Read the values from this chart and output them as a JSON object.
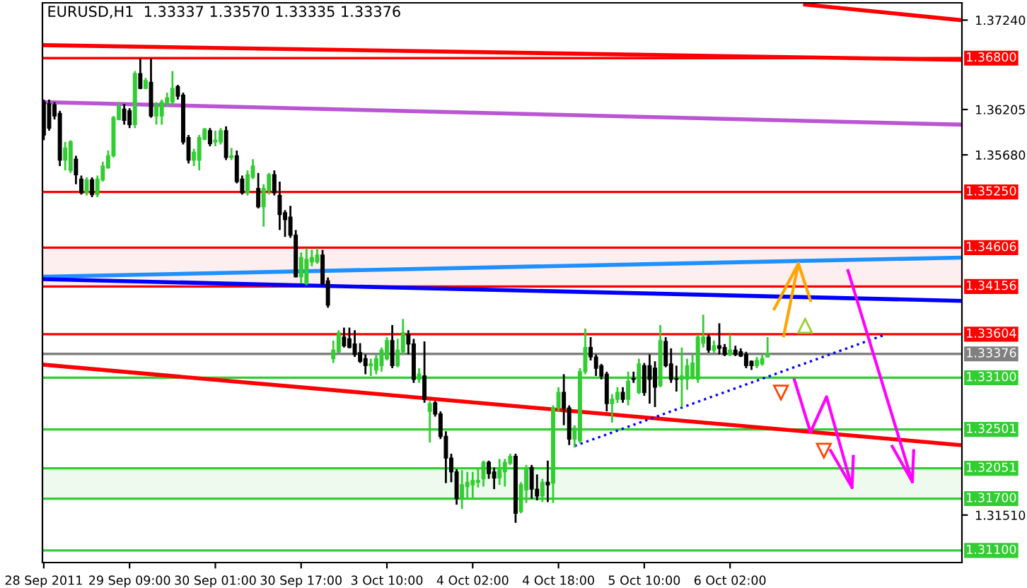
{
  "chart_data": {
    "type": "candlestick",
    "title": "EURUSD,H1  1.33337 1.33570 1.33335 1.33376",
    "categories": [
      "28 Sep 2011",
      null,
      null,
      null,
      null,
      null,
      null,
      null,
      null,
      null,
      null,
      null,
      null,
      null,
      null,
      null,
      "29 Sep 09:00",
      null,
      null,
      null,
      null,
      null,
      null,
      null,
      null,
      null,
      null,
      null,
      null,
      null,
      null,
      null,
      "30 Sep 01:00",
      null,
      null,
      null,
      null,
      null,
      null,
      null,
      null,
      null,
      null,
      null,
      null,
      null,
      null,
      null,
      "30 Sep 17:00",
      null,
      null,
      null,
      null,
      null,
      null,
      null,
      null,
      null,
      null,
      null,
      null,
      null,
      null,
      null,
      "3 Oct 10:00",
      null,
      null,
      null,
      null,
      null,
      null,
      null,
      null,
      null,
      null,
      null,
      null,
      null,
      null,
      null,
      "4 Oct 02:00",
      null,
      null,
      null,
      null,
      null,
      null,
      null,
      null,
      null,
      null,
      null,
      null,
      null,
      null,
      null,
      "4 Oct 18:00",
      null,
      null,
      null,
      null,
      null,
      null,
      null,
      null,
      null,
      null,
      null,
      null,
      null,
      null,
      null,
      "5 Oct 10:00",
      null,
      null,
      null,
      null,
      null,
      null,
      null,
      null,
      null,
      null,
      null,
      null,
      null,
      null,
      null,
      "6 Oct 02:00",
      null,
      null,
      null,
      null,
      null,
      null,
      null,
      null,
      null,
      null,
      null,
      null,
      null,
      null,
      null,
      null,
      null,
      null,
      null,
      null,
      null,
      null,
      null,
      null,
      null,
      null,
      null,
      null,
      null,
      null,
      null,
      null,
      null,
      null,
      null,
      null,
      null,
      null,
      null,
      null,
      null,
      null,
      null
    ],
    "ohlc": [
      [
        1.3629,
        1.3632,
        1.3585,
        1.3591
      ],
      [
        1.3627,
        1.3632,
        1.3596,
        1.3599
      ],
      [
        1.3626,
        1.3629,
        1.3609,
        1.3613
      ],
      [
        1.3616,
        1.3619,
        1.3555,
        1.3562
      ],
      [
        1.3562,
        1.3583,
        1.355,
        1.3576
      ],
      [
        1.355,
        1.3585,
        1.3547,
        1.3583
      ],
      [
        1.3563,
        1.3567,
        1.3534,
        1.3545
      ],
      [
        1.354,
        1.3544,
        1.3522,
        1.3524
      ],
      [
        1.3524,
        1.3542,
        1.3521,
        1.3539
      ],
      [
        1.3539,
        1.3542,
        1.3519,
        1.3522
      ],
      [
        1.3522,
        1.3544,
        1.3519,
        1.354
      ],
      [
        1.3539,
        1.356,
        1.3537,
        1.3555
      ],
      [
        1.3553,
        1.3573,
        1.3552,
        1.3567
      ],
      [
        1.3567,
        1.3613,
        1.3565,
        1.3611
      ],
      [
        1.3609,
        1.3629,
        1.3608,
        1.3624
      ],
      [
        1.3621,
        1.3627,
        1.3603,
        1.3608
      ],
      [
        1.3619,
        1.3622,
        1.3599,
        1.3603
      ],
      [
        1.3603,
        1.3665,
        1.3599,
        1.3662
      ],
      [
        1.3662,
        1.368,
        1.3644,
        1.3645
      ],
      [
        1.3645,
        1.3657,
        1.3644,
        1.3654
      ],
      [
        1.3652,
        1.368,
        1.3611,
        1.3613
      ],
      [
        1.3613,
        1.3629,
        1.3603,
        1.3626
      ],
      [
        1.3613,
        1.3632,
        1.3603,
        1.3629
      ],
      [
        1.3627,
        1.364,
        1.3624,
        1.3634
      ],
      [
        1.3629,
        1.3665,
        1.3626,
        1.3645
      ],
      [
        1.3647,
        1.3649,
        1.3632,
        1.3636
      ],
      [
        1.3637,
        1.364,
        1.358,
        1.3583
      ],
      [
        1.3588,
        1.3591,
        1.3558,
        1.3562
      ],
      [
        1.3562,
        1.3575,
        1.3555,
        1.3571
      ],
      [
        1.3562,
        1.3591,
        1.355,
        1.3588
      ],
      [
        1.3586,
        1.3599,
        1.3585,
        1.3598
      ],
      [
        1.3596,
        1.3599,
        1.3578,
        1.3581
      ],
      [
        1.3583,
        1.3596,
        1.3578,
        1.3585
      ],
      [
        1.3583,
        1.3599,
        1.358,
        1.3596
      ],
      [
        1.3596,
        1.3601,
        1.3562,
        1.3565
      ],
      [
        1.3565,
        1.3576,
        1.3562,
        1.3567
      ],
      [
        1.3567,
        1.3573,
        1.3535,
        1.3537
      ],
      [
        1.354,
        1.3544,
        1.3522,
        1.3524
      ],
      [
        1.3524,
        1.355,
        1.3521,
        1.3545
      ],
      [
        1.3542,
        1.3563,
        1.354,
        1.3555
      ],
      [
        1.3529,
        1.3547,
        1.3506,
        1.3508
      ],
      [
        1.3508,
        1.3534,
        1.3485,
        1.3529
      ],
      [
        1.3527,
        1.3547,
        1.3522,
        1.3545
      ],
      [
        1.3545,
        1.355,
        1.3521,
        1.3524
      ],
      [
        1.3521,
        1.3537,
        1.3481,
        1.3499
      ],
      [
        1.3501,
        1.3504,
        1.3473,
        1.3493
      ],
      [
        1.3496,
        1.3509,
        1.3472,
        1.3475
      ],
      [
        1.3475,
        1.3481,
        1.3426,
        1.3427
      ],
      [
        1.3427,
        1.3455,
        1.3419,
        1.3449
      ],
      [
        1.3419,
        1.346,
        1.3417,
        1.3447
      ],
      [
        1.3444,
        1.3458,
        1.3439,
        1.3449
      ],
      [
        1.3444,
        1.346,
        1.3442,
        1.3452
      ],
      [
        1.3452,
        1.3458,
        1.3417,
        1.3419
      ],
      [
        1.3422,
        1.3426,
        1.3391,
        1.3394
      ],
      [
        1.3332,
        1.3353,
        1.3327,
        1.3342
      ],
      [
        1.334,
        1.3365,
        1.3339,
        1.3362
      ],
      [
        1.3357,
        1.3368,
        1.3345,
        1.3347
      ],
      [
        1.3355,
        1.3368,
        1.3344,
        1.3345
      ],
      [
        1.3349,
        1.3365,
        1.3334,
        1.3337
      ],
      [
        1.3339,
        1.335,
        1.3327,
        1.3329
      ],
      [
        1.3332,
        1.3337,
        1.3314,
        1.3324
      ],
      [
        1.3324,
        1.3332,
        1.3312,
        1.3326
      ],
      [
        1.3319,
        1.3337,
        1.3314,
        1.3332
      ],
      [
        1.3324,
        1.3345,
        1.3317,
        1.3342
      ],
      [
        1.3332,
        1.3357,
        1.333,
        1.3353
      ],
      [
        1.3353,
        1.3371,
        1.3321,
        1.3324
      ],
      [
        1.3324,
        1.3355,
        1.3322,
        1.3342
      ],
      [
        1.334,
        1.3378,
        1.3337,
        1.3362
      ],
      [
        1.336,
        1.3365,
        1.3337,
        1.3349
      ],
      [
        1.3349,
        1.3355,
        1.3304,
        1.3308
      ],
      [
        1.3308,
        1.3321,
        1.3304,
        1.3314
      ],
      [
        1.3312,
        1.3352,
        1.3281,
        1.3285
      ],
      [
        1.3271,
        1.3283,
        1.3235,
        1.328
      ],
      [
        1.3281,
        1.3283,
        1.3265,
        1.3268
      ],
      [
        1.3268,
        1.3271,
        1.3239,
        1.3242
      ],
      [
        1.3242,
        1.3248,
        1.3188,
        1.3217
      ],
      [
        1.3217,
        1.3222,
        1.3189,
        1.3201
      ],
      [
        1.3201,
        1.3204,
        1.3163,
        1.317
      ],
      [
        1.317,
        1.3203,
        1.3158,
        1.3186
      ],
      [
        1.3184,
        1.3201,
        1.317,
        1.3189
      ],
      [
        1.3186,
        1.3201,
        1.317,
        1.3191
      ],
      [
        1.3189,
        1.3206,
        1.3183,
        1.3191
      ],
      [
        1.3193,
        1.3214,
        1.3184,
        1.3212
      ],
      [
        1.3212,
        1.3214,
        1.3193,
        1.3199
      ],
      [
        1.3201,
        1.3206,
        1.3181,
        1.3194
      ],
      [
        1.3194,
        1.3216,
        1.3186,
        1.3203
      ],
      [
        1.3201,
        1.3216,
        1.3184,
        1.3212
      ],
      [
        1.3211,
        1.3222,
        1.3209,
        1.3219
      ],
      [
        1.3219,
        1.3222,
        1.3142,
        1.3153
      ],
      [
        1.3155,
        1.3189,
        1.3153,
        1.3186
      ],
      [
        1.318,
        1.3209,
        1.3165,
        1.3206
      ],
      [
        1.3206,
        1.3209,
        1.317,
        1.3181
      ],
      [
        1.3181,
        1.3198,
        1.3168,
        1.3173
      ],
      [
        1.3173,
        1.3193,
        1.3166,
        1.3189
      ],
      [
        1.3189,
        1.3214,
        1.3166,
        1.3186
      ],
      [
        1.3188,
        1.3278,
        1.3165,
        1.3275
      ],
      [
        1.3275,
        1.3299,
        1.3271,
        1.3293
      ],
      [
        1.3293,
        1.3314,
        1.3255,
        1.3275
      ],
      [
        1.3275,
        1.3278,
        1.3232,
        1.3239
      ],
      [
        1.3239,
        1.3255,
        1.3229,
        1.3252
      ],
      [
        1.3237,
        1.3321,
        1.3234,
        1.3317
      ],
      [
        1.3317,
        1.3367,
        1.3314,
        1.3345
      ],
      [
        1.3345,
        1.3357,
        1.333,
        1.3334
      ],
      [
        1.3334,
        1.3337,
        1.3312,
        1.3321
      ],
      [
        1.3324,
        1.3326,
        1.3308,
        1.3312
      ],
      [
        1.3314,
        1.3317,
        1.3271,
        1.328
      ],
      [
        1.328,
        1.3291,
        1.3258,
        1.3285
      ],
      [
        1.3285,
        1.3299,
        1.3281,
        1.3293
      ],
      [
        1.3293,
        1.3299,
        1.3281,
        1.3285
      ],
      [
        1.3285,
        1.3317,
        1.3278,
        1.3306
      ],
      [
        1.3309,
        1.3317,
        1.3304,
        1.3308
      ],
      [
        1.3293,
        1.3332,
        1.3291,
        1.3326
      ],
      [
        1.3324,
        1.3327,
        1.3289,
        1.3293
      ],
      [
        1.3324,
        1.3337,
        1.328,
        1.3308
      ],
      [
        1.3321,
        1.3329,
        1.3276,
        1.3299
      ],
      [
        1.3301,
        1.3371,
        1.3299,
        1.3353
      ],
      [
        1.3352,
        1.3357,
        1.3322,
        1.3324
      ],
      [
        1.3326,
        1.3344,
        1.3304,
        1.3308
      ],
      [
        1.3309,
        1.3324,
        1.3294,
        1.3308
      ],
      [
        1.3308,
        1.3345,
        1.3276,
        1.3312
      ],
      [
        1.3308,
        1.3332,
        1.3296,
        1.3324
      ],
      [
        1.3309,
        1.3337,
        1.3308,
        1.3327
      ],
      [
        1.3308,
        1.336,
        1.3304,
        1.3357
      ],
      [
        1.335,
        1.3383,
        1.3345,
        1.3357
      ],
      [
        1.3357,
        1.336,
        1.3339,
        1.3342
      ],
      [
        1.3342,
        1.3353,
        1.3339,
        1.3347
      ],
      [
        1.3347,
        1.3373,
        1.3337,
        1.3344
      ],
      [
        1.3345,
        1.3349,
        1.3335,
        1.3337
      ],
      [
        1.3337,
        1.336,
        1.3335,
        1.3342
      ],
      [
        1.3342,
        1.3347,
        1.3335,
        1.3337
      ],
      [
        1.334,
        1.3344,
        1.3334,
        1.3335
      ],
      [
        1.3337,
        1.334,
        1.3321,
        1.3324
      ],
      [
        1.3329,
        1.333,
        1.3319,
        1.3324
      ],
      [
        1.3324,
        1.3334,
        1.3321,
        1.333
      ],
      [
        1.3326,
        1.3337,
        1.3324,
        1.3332
      ],
      [
        1.3334,
        1.3357,
        1.3334,
        1.3338
      ],
      null,
      null,
      null,
      null,
      null,
      null,
      null,
      null,
      null,
      null,
      null,
      null,
      null,
      null,
      null,
      null,
      null,
      null,
      null,
      null,
      null,
      null,
      null,
      null,
      null,
      null,
      null,
      null,
      null,
      null,
      null,
      null,
      null,
      null,
      null,
      null
    ],
    "series": [
      {
        "type": "line",
        "values": [
          null,
          null,
          null,
          null,
          null,
          null,
          null,
          null,
          null,
          null,
          null,
          null,
          null,
          null,
          null,
          null,
          null,
          null,
          null,
          null,
          null,
          null,
          null,
          null,
          null,
          null,
          null,
          null,
          null,
          null,
          null,
          null,
          null,
          null,
          null,
          null,
          null,
          null,
          null,
          null,
          null,
          null,
          null,
          null,
          null,
          null,
          null,
          null,
          null,
          null,
          null,
          null,
          null,
          null,
          null,
          null,
          null,
          null,
          null,
          null,
          null,
          null,
          null,
          null,
          null,
          null,
          null,
          null,
          null,
          null,
          null,
          null,
          null,
          null,
          null,
          null,
          null,
          null,
          null,
          null,
          null,
          null,
          null,
          null,
          null,
          null,
          null,
          null,
          null,
          null,
          null,
          null,
          null,
          null,
          null,
          null,
          null,
          null,
          null,
          null,
          null,
          null,
          null,
          null,
          null,
          null,
          null,
          null,
          null,
          null,
          null,
          null,
          null,
          null,
          null,
          null,
          null,
          null,
          null,
          null,
          null,
          null,
          null,
          null,
          null,
          null,
          null,
          null,
          null,
          null,
          null,
          null,
          null,
          null,
          null,
          null,
          null,
          null,
          null,
          null,
          null,
          null,
          1.3742,
          null,
          null,
          null,
          null,
          null,
          null,
          null,
          null,
          null,
          null,
          null,
          null,
          null,
          null,
          null,
          null,
          null,
          null,
          null,
          null,
          null,
          null,
          null,
          null,
          null,
          null,
          null,
          null,
          1.3724
        ],
        "color": "#ff0000",
        "line_style": "solid"
      },
      {
        "type": "line",
        "values": [
          1.3695,
          null,
          null,
          null,
          null,
          null,
          null,
          null,
          null,
          null,
          null,
          null,
          null,
          null,
          null,
          null,
          null,
          null,
          null,
          null,
          null,
          null,
          null,
          null,
          null,
          null,
          null,
          null,
          null,
          null,
          null,
          null,
          null,
          null,
          null,
          null,
          null,
          null,
          null,
          null,
          null,
          null,
          null,
          null,
          null,
          null,
          null,
          null,
          null,
          null,
          null,
          null,
          null,
          null,
          null,
          null,
          null,
          null,
          null,
          null,
          null,
          null,
          null,
          null,
          null,
          null,
          null,
          null,
          null,
          null,
          null,
          null,
          null,
          null,
          null,
          null,
          null,
          null,
          null,
          null,
          null,
          null,
          null,
          null,
          null,
          null,
          null,
          null,
          null,
          null,
          null,
          null,
          null,
          null,
          null,
          null,
          null,
          null,
          null,
          null,
          null,
          null,
          null,
          null,
          null,
          null,
          null,
          null,
          null,
          null,
          null,
          null,
          null,
          null,
          null,
          null,
          null,
          null,
          null,
          null,
          null,
          null,
          null,
          null,
          null,
          null,
          null,
          null,
          null,
          null,
          null,
          null,
          null,
          null,
          null,
          null,
          null,
          null,
          null,
          null,
          null,
          null,
          null,
          null,
          null,
          null,
          null,
          null,
          null,
          null,
          null,
          null,
          null,
          null,
          null,
          null,
          null,
          null,
          null,
          null,
          null,
          null,
          null,
          null,
          null,
          null,
          null,
          null,
          null,
          null,
          null,
          1.3678
        ],
        "color": "#ff0000",
        "line_style": "solid"
      },
      {
        "type": "line",
        "values": [
          1.3629,
          null,
          null,
          null,
          null,
          null,
          null,
          null,
          null,
          null,
          null,
          null,
          null,
          null,
          null,
          null,
          null,
          null,
          null,
          null,
          null,
          null,
          null,
          null,
          null,
          null,
          null,
          null,
          null,
          null,
          null,
          null,
          null,
          null,
          null,
          null,
          null,
          null,
          null,
          null,
          null,
          null,
          null,
          null,
          null,
          null,
          null,
          null,
          null,
          null,
          null,
          null,
          null,
          null,
          null,
          null,
          null,
          null,
          null,
          null,
          null,
          null,
          null,
          null,
          null,
          null,
          null,
          null,
          null,
          null,
          null,
          null,
          null,
          null,
          null,
          null,
          null,
          null,
          null,
          null,
          null,
          null,
          null,
          null,
          null,
          null,
          null,
          null,
          null,
          null,
          null,
          null,
          null,
          null,
          null,
          null,
          null,
          null,
          null,
          null,
          null,
          null,
          null,
          null,
          null,
          null,
          null,
          null,
          null,
          null,
          null,
          null,
          null,
          null,
          null,
          null,
          null,
          null,
          null,
          null,
          null,
          null,
          null,
          null,
          null,
          null,
          null,
          null,
          null,
          null,
          null,
          null,
          null,
          null,
          null,
          null,
          null,
          null,
          null,
          null,
          null,
          null,
          null,
          null,
          null,
          null,
          null,
          null,
          null,
          null,
          null,
          null,
          null,
          null,
          null,
          null,
          null,
          null,
          null,
          null,
          null,
          null,
          null,
          null,
          null,
          null,
          null,
          null,
          null,
          null,
          null,
          1.3603
        ],
        "color": "#ba55d3",
        "line_style": "solid"
      },
      {
        "type": "line",
        "values": [
          1.3427,
          null,
          null,
          null,
          null,
          null,
          null,
          null,
          null,
          null,
          null,
          null,
          null,
          null,
          null,
          null,
          null,
          null,
          null,
          null,
          null,
          null,
          null,
          null,
          null,
          null,
          null,
          null,
          null,
          null,
          null,
          null,
          null,
          null,
          null,
          null,
          null,
          null,
          null,
          null,
          null,
          null,
          null,
          null,
          null,
          null,
          null,
          null,
          null,
          null,
          null,
          null,
          null,
          null,
          null,
          null,
          null,
          null,
          null,
          null,
          null,
          null,
          null,
          null,
          null,
          null,
          null,
          null,
          null,
          null,
          null,
          null,
          null,
          null,
          null,
          null,
          null,
          null,
          null,
          null,
          null,
          null,
          null,
          null,
          null,
          null,
          null,
          null,
          null,
          null,
          null,
          null,
          null,
          null,
          null,
          null,
          null,
          null,
          null,
          null,
          null,
          null,
          null,
          null,
          null,
          null,
          null,
          null,
          null,
          null,
          null,
          null,
          null,
          null,
          null,
          null,
          null,
          null,
          null,
          null,
          null,
          null,
          null,
          null,
          null,
          null,
          null,
          null,
          null,
          null,
          null,
          null,
          null,
          null,
          null,
          null,
          null,
          null,
          null,
          null,
          null,
          null,
          null,
          null,
          null,
          null,
          null,
          null,
          null,
          null,
          null,
          null,
          null,
          null,
          null,
          null,
          null,
          null,
          null,
          null,
          null,
          null,
          null,
          null,
          null,
          null,
          null,
          null,
          null,
          null,
          null,
          1.3449
        ],
        "color": "#1e90ff",
        "line_style": "solid"
      },
      {
        "type": "line",
        "values": [
          1.3424,
          null,
          null,
          null,
          null,
          null,
          null,
          null,
          null,
          null,
          null,
          null,
          null,
          null,
          null,
          null,
          null,
          null,
          null,
          null,
          null,
          null,
          null,
          null,
          null,
          null,
          null,
          null,
          null,
          null,
          null,
          null,
          null,
          null,
          null,
          null,
          null,
          null,
          null,
          null,
          null,
          null,
          null,
          null,
          null,
          null,
          null,
          null,
          null,
          null,
          null,
          null,
          null,
          null,
          null,
          null,
          null,
          null,
          null,
          null,
          null,
          null,
          null,
          null,
          null,
          null,
          null,
          null,
          null,
          null,
          null,
          null,
          null,
          null,
          null,
          null,
          null,
          null,
          null,
          null,
          null,
          null,
          null,
          null,
          null,
          null,
          null,
          null,
          null,
          null,
          null,
          null,
          null,
          null,
          null,
          null,
          null,
          null,
          null,
          null,
          null,
          null,
          null,
          null,
          null,
          null,
          null,
          null,
          null,
          null,
          null,
          null,
          null,
          null,
          null,
          null,
          null,
          null,
          null,
          null,
          null,
          null,
          null,
          null,
          null,
          null,
          null,
          null,
          null,
          null,
          null,
          null,
          null,
          null,
          null,
          null,
          null,
          null,
          null,
          null,
          null,
          null,
          null,
          null,
          null,
          null,
          null,
          null,
          null,
          null,
          null,
          null,
          null,
          null,
          null,
          null,
          null,
          null,
          null,
          null,
          null,
          null,
          null,
          null,
          null,
          null,
          null,
          null,
          null,
          null,
          null,
          1.3399
        ],
        "color": "#0000ff",
        "line_style": "solid"
      },
      {
        "type": "line",
        "values": [
          1.3325,
          null,
          null,
          null,
          null,
          null,
          null,
          null,
          null,
          null,
          null,
          null,
          null,
          null,
          null,
          null,
          null,
          null,
          null,
          null,
          null,
          null,
          null,
          null,
          null,
          null,
          null,
          null,
          null,
          null,
          null,
          null,
          null,
          null,
          null,
          null,
          null,
          null,
          null,
          null,
          null,
          null,
          null,
          null,
          null,
          null,
          null,
          null,
          null,
          null,
          null,
          null,
          null,
          null,
          null,
          null,
          null,
          null,
          null,
          null,
          null,
          null,
          null,
          null,
          null,
          null,
          null,
          null,
          null,
          null,
          null,
          null,
          null,
          null,
          null,
          null,
          null,
          null,
          null,
          null,
          null,
          null,
          null,
          null,
          null,
          null,
          null,
          null,
          null,
          null,
          null,
          null,
          null,
          null,
          null,
          null,
          null,
          null,
          null,
          null,
          null,
          null,
          null,
          null,
          null,
          null,
          null,
          null,
          null,
          null,
          null,
          null,
          null,
          null,
          null,
          null,
          null,
          null,
          null,
          null,
          null,
          null,
          null,
          null,
          null,
          null,
          null,
          null,
          null,
          null,
          null,
          null,
          null,
          null,
          null,
          null,
          null,
          null,
          null,
          null,
          null,
          null,
          null,
          null,
          null,
          null,
          null,
          null,
          null,
          null,
          null,
          null,
          null,
          null,
          null,
          null,
          null,
          null,
          null,
          null,
          null,
          null,
          null,
          null,
          null,
          null,
          null,
          null,
          null,
          null,
          null,
          1.3232
        ],
        "color": "#ff0000",
        "line_style": "solid"
      },
      {
        "type": "line",
        "values": [
          null,
          null,
          null,
          null,
          null,
          null,
          null,
          null,
          null,
          null,
          null,
          null,
          null,
          null,
          null,
          null,
          null,
          null,
          null,
          null,
          null,
          null,
          null,
          null,
          null,
          null,
          null,
          null,
          null,
          null,
          null,
          null,
          null,
          null,
          null,
          null,
          null,
          null,
          null,
          null,
          null,
          null,
          null,
          null,
          null,
          null,
          null,
          null,
          null,
          null,
          null,
          null,
          null,
          null,
          null,
          null,
          null,
          null,
          null,
          null,
          null,
          null,
          null,
          null,
          null,
          null,
          null,
          null,
          null,
          null,
          null,
          null,
          null,
          null,
          null,
          null,
          null,
          null,
          null,
          null,
          null,
          null,
          null,
          null,
          null,
          null,
          null,
          null,
          null,
          null,
          null,
          null,
          null,
          null,
          null,
          null,
          null,
          null,
          null,
          1.3231,
          null,
          null,
          null,
          null,
          null,
          null,
          null,
          null,
          null,
          null,
          null,
          null,
          null,
          null,
          null,
          null,
          null,
          null,
          null,
          null,
          null,
          null,
          null,
          null,
          null,
          null,
          null,
          null,
          null,
          null,
          null,
          null,
          null,
          null,
          null,
          null,
          null,
          null,
          null,
          null,
          null,
          null,
          null,
          null,
          null,
          null,
          null,
          null,
          null,
          null,
          null,
          null,
          null,
          null,
          null,
          null,
          null,
          1.336,
          null,
          null,
          null,
          null,
          null,
          null,
          null,
          null,
          null,
          null,
          null,
          null,
          null,
          null
        ],
        "color": "#0000ff",
        "line_style": "dotted"
      }
    ],
    "ref_lines": [
      {
        "axis": "y",
        "value": 1.368,
        "label": "1.36800",
        "color": "#ff0000"
      },
      {
        "axis": "y",
        "value": 1.3525,
        "label": "1.35250",
        "color": "#ff0000"
      },
      {
        "axis": "y",
        "value": 1.34606,
        "label": "1.34606",
        "color": "#ff0000"
      },
      {
        "axis": "y",
        "value": 1.34156,
        "label": "1.34156",
        "color": "#ff0000"
      },
      {
        "axis": "y",
        "value": 1.33604,
        "label": "1.33604",
        "color": "#ff0000"
      },
      {
        "axis": "y",
        "value": 1.33376,
        "label": "1.33376",
        "color": "#808080"
      },
      {
        "axis": "y",
        "value": 1.331,
        "label": "1.33100",
        "color": "#32cd32"
      },
      {
        "axis": "y",
        "value": 1.32501,
        "label": "1.32501",
        "color": "#32cd32"
      },
      {
        "axis": "y",
        "value": 1.32051,
        "label": "1.32051",
        "color": "#32cd32"
      },
      {
        "axis": "y",
        "value": 1.317,
        "label": "1.31700",
        "color": "#32cd32"
      },
      {
        "axis": "y",
        "value": 1.311,
        "label": "1.31100",
        "color": "#32cd32"
      }
    ],
    "bands": [
      {
        "axis": "y",
        "from": 1.34156,
        "to": 1.34606,
        "color": "#fdeef0"
      },
      {
        "axis": "y",
        "from": 1.317,
        "to": 1.32051,
        "color": "#eefaee"
      }
    ],
    "ylim": [
      1.3096,
      1.3744
    ],
    "yticks": [
      {
        "value": 1.3724,
        "label": "1.37240"
      },
      1.36205,
      {
        "value": 1.3568,
        "label": "1.35680"
      },
      {
        "value": 1.3151,
        "label": "1.31510"
      }
    ],
    "grid": false,
    "legend": false
  }
}
